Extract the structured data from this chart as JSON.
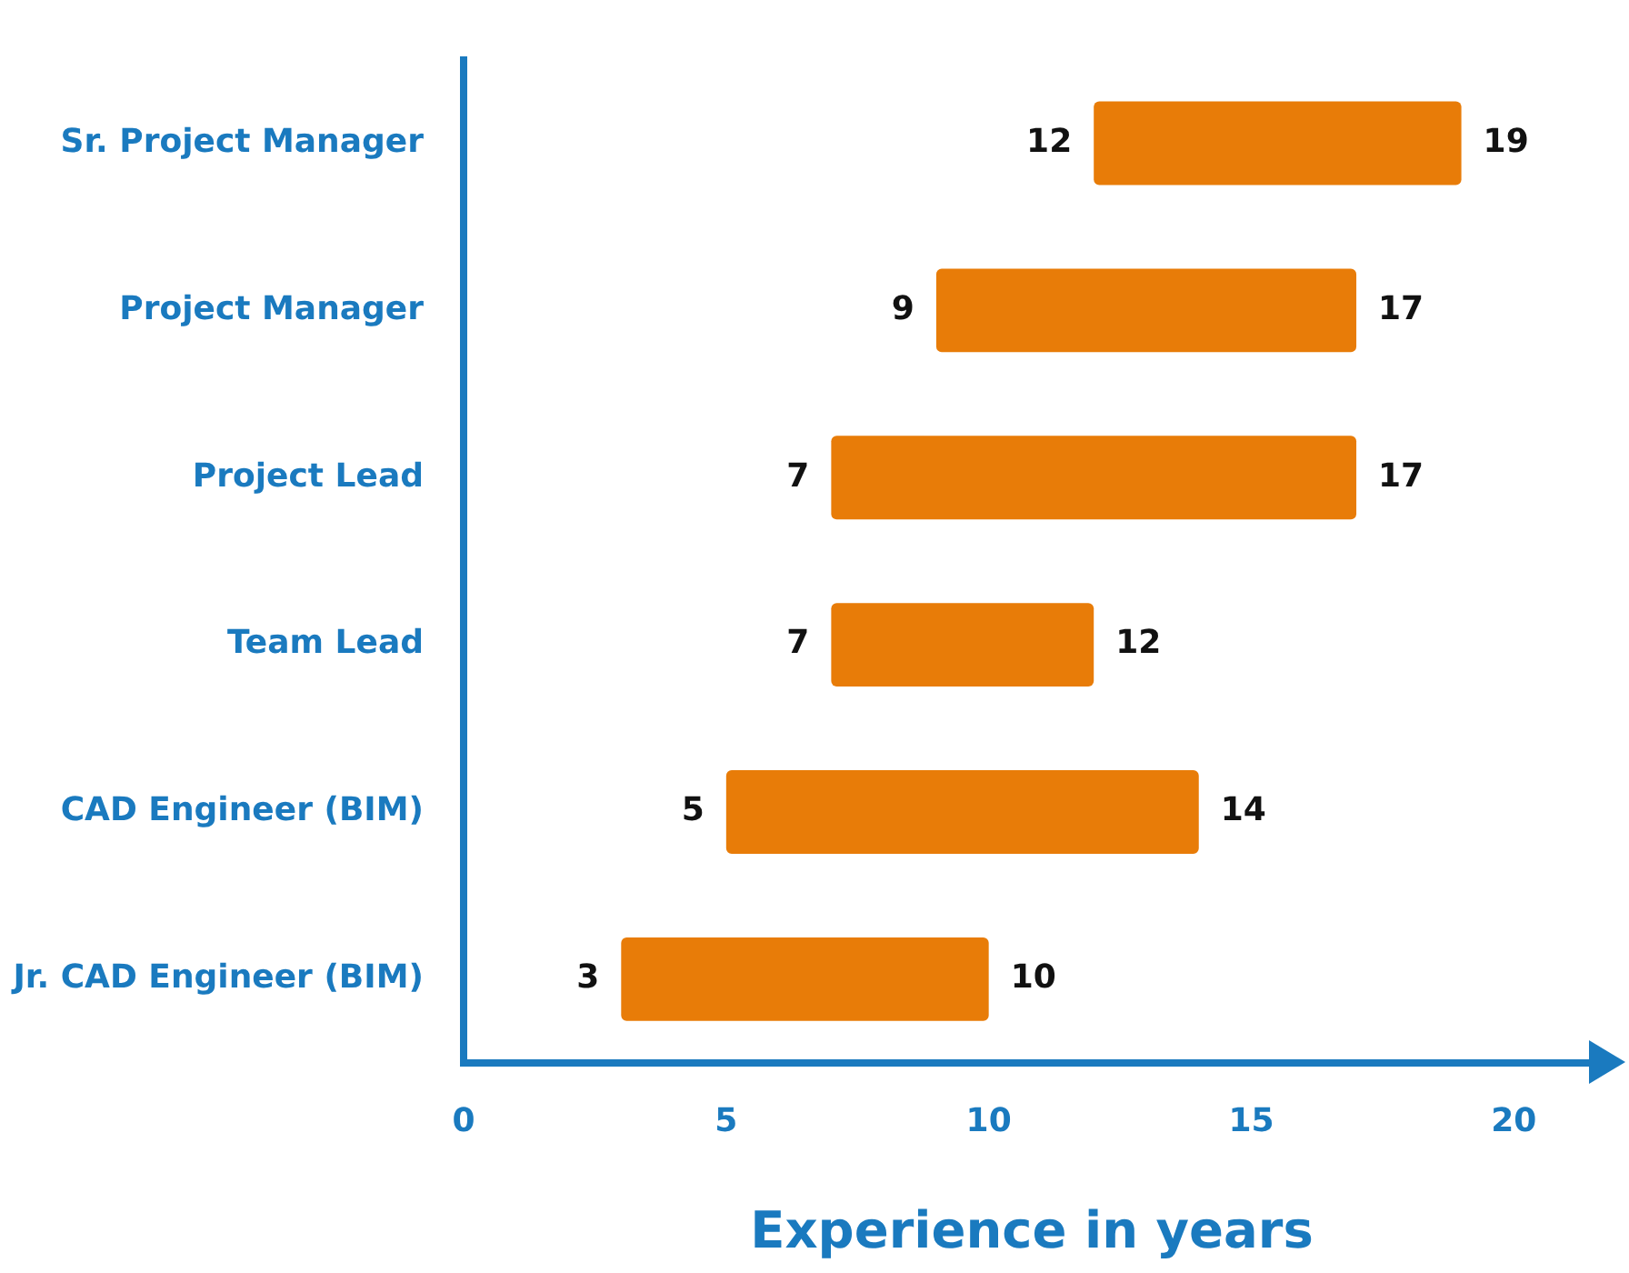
{
  "chart_data": {
    "type": "bar",
    "orientation": "horizontal",
    "xlabel": "Experience in years",
    "categories": [
      "Sr. Project Manager",
      "Project Manager",
      "Project Lead",
      "Team Lead",
      "CAD Engineer (BIM)",
      "Jr. CAD Engineer (BIM)"
    ],
    "base": [
      12,
      9,
      7,
      7,
      5,
      3
    ],
    "values": [
      7,
      8,
      10,
      5,
      9,
      7
    ],
    "color": "#e87c08",
    "xlim": [
      0,
      21.5
    ],
    "xticks": [
      0,
      5,
      10,
      15,
      20
    ],
    "grid": false,
    "legend": false,
    "annotations": [
      {
        "text": "12",
        "x": 12,
        "y": "Sr. Project Manager"
      },
      {
        "text": "19",
        "x": 19,
        "y": "Sr. Project Manager"
      },
      {
        "text": "9",
        "x": 9,
        "y": "Project Manager"
      },
      {
        "text": "17",
        "x": 17,
        "y": "Project Manager"
      },
      {
        "text": "7",
        "x": 7,
        "y": "Project Lead"
      },
      {
        "text": "17",
        "x": 17,
        "y": "Project Lead"
      },
      {
        "text": "7",
        "x": 7,
        "y": "Team Lead"
      },
      {
        "text": "12",
        "x": 12,
        "y": "Team Lead"
      },
      {
        "text": "5",
        "x": 5,
        "y": "CAD Engineer (BIM)"
      },
      {
        "text": "14",
        "x": 14,
        "y": "CAD Engineer (BIM)"
      },
      {
        "text": "3",
        "x": 3,
        "y": "Jr. CAD Engineer (BIM)"
      },
      {
        "text": "10",
        "x": 10,
        "y": "Jr. CAD Engineer (BIM)"
      }
    ]
  }
}
